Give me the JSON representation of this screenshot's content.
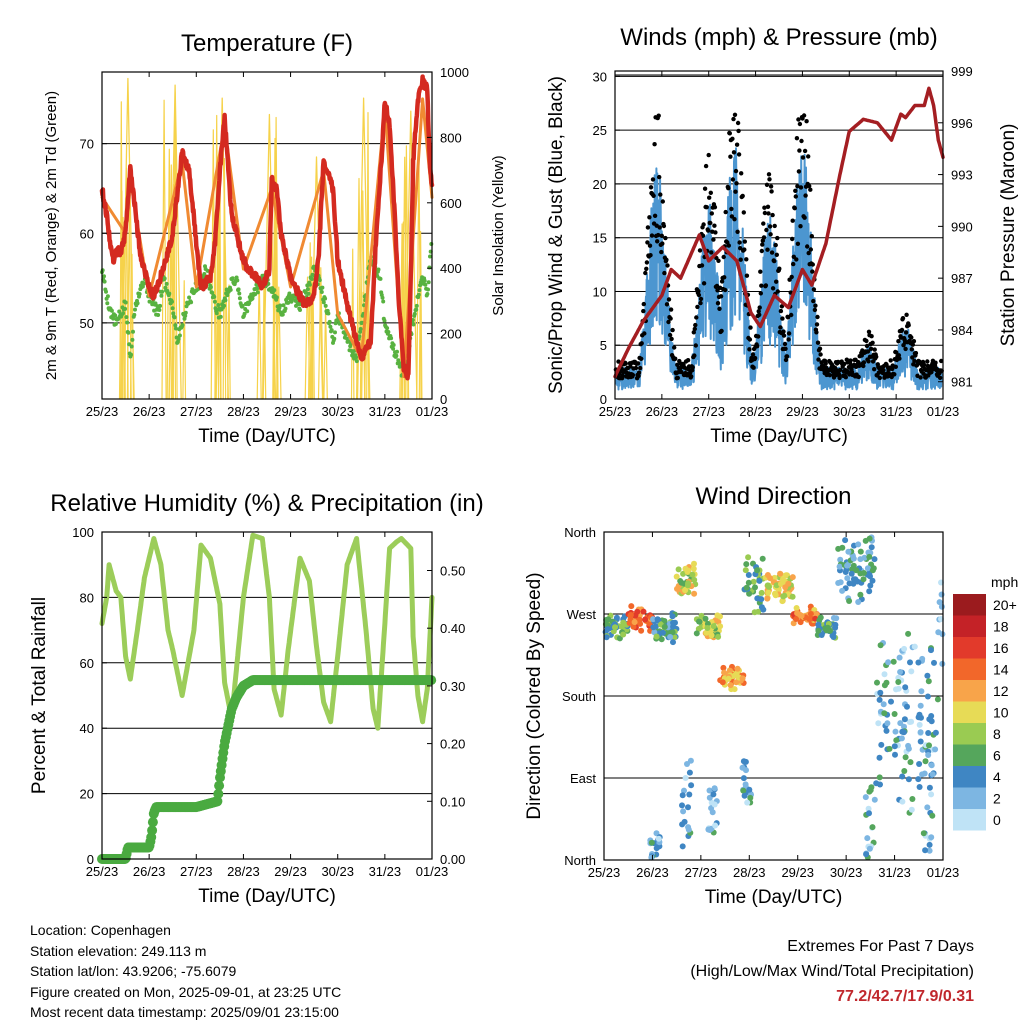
{
  "palette": {
    "temp_red": "#d42a20",
    "temp_orange": "#f08a32",
    "dewpoint_green": "#58b240",
    "solar_yellow": "#f6d24a",
    "wind_black": "#000000",
    "wind_blue": "#4c96d0",
    "pressure_maroon": "#a41e22",
    "rh_light_green": "#9ccd5a",
    "precip_green": "#4aaa40"
  },
  "x_ticks": [
    "25/23",
    "26/23",
    "27/23",
    "28/23",
    "29/23",
    "30/23",
    "31/23",
    "01/23"
  ],
  "x_axis_label": "Time (Day/UTC)",
  "chart_data": [
    {
      "id": "temperature",
      "type": "line",
      "title": "Temperature (F)",
      "ylabel": "2m & 9m T (Red, Orange) & 2m Td (Green)",
      "y2label": "Solar Insolation (Yellow)",
      "ylim": [
        41.5,
        78
      ],
      "yticks": [
        50,
        60,
        70
      ],
      "y2lim": [
        0,
        1000
      ],
      "y2ticks": [
        0,
        200,
        400,
        600,
        800,
        1000
      ],
      "series": [
        {
          "key": "t2m",
          "color": "#d42a20",
          "x": [
            0.0,
            0.1,
            0.2,
            0.25,
            0.3,
            0.4,
            0.5,
            0.55,
            0.6,
            0.65,
            0.7,
            0.8,
            1.0,
            1.1,
            1.3,
            1.5,
            1.7,
            1.85,
            2.0,
            2.1,
            2.3,
            2.4,
            2.5,
            2.6,
            2.75,
            3.0,
            3.1,
            3.3,
            3.4,
            3.55,
            3.6,
            3.7,
            3.8,
            4.0,
            4.3,
            4.5,
            4.6,
            4.7,
            4.9,
            5.0,
            5.2,
            5.5,
            5.7,
            5.8,
            5.95,
            6.0,
            6.1,
            6.2,
            6.3,
            6.4,
            6.5,
            6.55,
            6.6,
            6.7,
            6.8,
            6.9,
            6.95,
            7.0
          ],
          "y": [
            65,
            62,
            58,
            57,
            58,
            58,
            60,
            64,
            67,
            65,
            63,
            58,
            54,
            53,
            56,
            60,
            69,
            67,
            59,
            54,
            55,
            59,
            67,
            73,
            62,
            57,
            56,
            55,
            54,
            56,
            66,
            65,
            60,
            55,
            52,
            53,
            58,
            68,
            65,
            57,
            52,
            46,
            48,
            58,
            70,
            75,
            72,
            63,
            52,
            45,
            44,
            55,
            68,
            75,
            77,
            76,
            68,
            65
          ]
        },
        {
          "key": "t9m",
          "color": "#f08a32",
          "x": [
            0.0,
            0.5,
            0.6,
            1.0,
            1.7,
            2.0,
            2.6,
            3.0,
            3.6,
            4.0,
            4.7,
            5.0,
            5.5,
            6.0,
            6.4,
            6.8,
            7.0
          ],
          "y": [
            64,
            60,
            66,
            53,
            68,
            54,
            72,
            56,
            65,
            54,
            67,
            51,
            46,
            74,
            44,
            75,
            64
          ]
        },
        {
          "key": "td2m",
          "color": "#58b240",
          "x": [
            0.0,
            0.1,
            0.2,
            0.3,
            0.5,
            0.6,
            0.7,
            0.9,
            1.0,
            1.2,
            1.3,
            1.5,
            1.6,
            1.8,
            2.0,
            2.2,
            2.4,
            2.5,
            2.7,
            2.85,
            3.0,
            3.2,
            3.4,
            3.6,
            3.8,
            4.0,
            4.2,
            4.4,
            4.5,
            4.7,
            4.9,
            5.0,
            5.2,
            5.4,
            5.5,
            5.7,
            5.9,
            6.0,
            6.2,
            6.4,
            6.6,
            6.8,
            6.9,
            7.0
          ],
          "y": [
            56,
            53,
            51,
            50,
            52,
            46,
            52,
            55,
            53,
            51,
            55,
            52,
            48,
            52,
            54,
            56,
            52,
            51,
            54,
            55,
            51,
            53,
            55,
            54,
            51,
            53,
            52,
            54,
            56,
            53,
            48,
            51,
            48,
            46,
            50,
            57,
            55,
            50,
            47,
            44,
            50,
            55,
            53,
            60
          ]
        },
        {
          "key": "solar",
          "color": "#f6d24a",
          "axis": "y2",
          "days": [
            0,
            1,
            2,
            3,
            4,
            5,
            6
          ],
          "peaks": [
            980,
            960,
            920,
            870,
            740,
            920,
            880
          ]
        }
      ]
    },
    {
      "id": "winds",
      "type": "scatter",
      "title": "Winds (mph) & Pressure (mb)",
      "ylabel": "Sonic/Prop Wind & Gust (Blue, Black)",
      "y2label": "Station Pressure (Maroon)",
      "ylim": [
        0,
        30.5
      ],
      "yticks": [
        0,
        5,
        10,
        15,
        20,
        25,
        30
      ],
      "y2lim": [
        980,
        999
      ],
      "y2ticks": [
        981,
        984,
        987,
        990,
        993,
        996,
        999
      ],
      "series": [
        {
          "key": "gust",
          "color": "#000000",
          "centers": [
            0.9,
            2.0,
            2.55,
            3.3,
            4.0,
            5.4,
            6.2
          ],
          "peak": [
            26,
            22,
            28,
            20,
            28,
            6,
            8
          ]
        },
        {
          "key": "wind",
          "color": "#4c96d0"
        },
        {
          "key": "pressure",
          "color": "#a41e22",
          "x": [
            0.0,
            0.3,
            0.6,
            1.0,
            1.2,
            1.4,
            1.8,
            2.0,
            2.3,
            2.6,
            2.9,
            3.1,
            3.4,
            3.7,
            4.0,
            4.2,
            4.5,
            4.8,
            5.0,
            5.3,
            5.6,
            5.9,
            6.1,
            6.2,
            6.4,
            6.6,
            6.7,
            6.8,
            6.9,
            7.0
          ],
          "y": [
            981.3,
            983,
            984.5,
            986,
            987.5,
            987,
            989.5,
            988,
            988.8,
            988,
            985,
            984.2,
            986,
            985.3,
            987.5,
            986.6,
            989,
            993,
            995.5,
            996.2,
            996,
            995,
            996.5,
            996.3,
            997,
            997,
            998,
            997,
            995,
            994
          ]
        }
      ]
    },
    {
      "id": "humidity",
      "type": "line",
      "title": "Relative Humidity (%) & Precipitation (in)",
      "ylabel": "Percent & Total Rainfall",
      "ylim": [
        0,
        100
      ],
      "yticks": [
        0,
        20,
        40,
        60,
        80,
        100
      ],
      "y2lim": [
        0,
        0.5667
      ],
      "y2ticks": [
        0.0,
        0.1,
        0.2,
        0.3,
        0.4,
        0.5
      ],
      "y2ticklabels": [
        "0.00",
        "0.10",
        "0.20",
        "0.30",
        "0.40",
        "0.50"
      ],
      "series": [
        {
          "key": "rh",
          "color": "#9ccd5a",
          "x": [
            0.0,
            0.1,
            0.15,
            0.3,
            0.4,
            0.5,
            0.6,
            0.75,
            0.9,
            1.0,
            1.1,
            1.25,
            1.4,
            1.5,
            1.7,
            1.85,
            1.95,
            2.1,
            2.3,
            2.5,
            2.6,
            2.75,
            3.0,
            3.2,
            3.4,
            3.55,
            3.65,
            3.8,
            3.95,
            4.2,
            4.4,
            4.55,
            4.7,
            4.85,
            5.0,
            5.2,
            5.4,
            5.6,
            5.75,
            5.85,
            6.0,
            6.1,
            6.25,
            6.35,
            6.55,
            6.6,
            6.7,
            6.8,
            6.9,
            7.0
          ],
          "y": [
            72,
            80,
            90,
            82,
            80,
            62,
            55,
            70,
            86,
            92,
            98,
            90,
            70,
            64,
            50,
            62,
            70,
            96,
            92,
            78,
            54,
            43,
            80,
            99,
            98,
            80,
            52,
            44,
            64,
            92,
            85,
            65,
            48,
            42,
            62,
            90,
            98,
            70,
            46,
            40,
            72,
            95,
            97,
            98,
            95,
            68,
            50,
            42,
            52,
            80
          ]
        },
        {
          "key": "precip",
          "color": "#4aaa40",
          "axis": "y2",
          "x": [
            0.0,
            0.5,
            0.55,
            1.0,
            1.05,
            1.1,
            1.15,
            1.3,
            2.0,
            2.45,
            2.5,
            2.6,
            2.7,
            2.75,
            2.85,
            3.0,
            3.2,
            7.0
          ],
          "y": [
            0.0,
            0.0,
            0.02,
            0.02,
            0.04,
            0.08,
            0.09,
            0.09,
            0.09,
            0.1,
            0.14,
            0.2,
            0.24,
            0.26,
            0.28,
            0.3,
            0.31,
            0.31
          ]
        }
      ]
    },
    {
      "id": "direction",
      "type": "scatter",
      "title": "Wind Direction",
      "ylabel": "Direction (Colored By Speed)",
      "ylim": [
        0,
        360
      ],
      "yticks": [
        0,
        90,
        180,
        270,
        360
      ],
      "yticklabels": [
        "North",
        "East",
        "South",
        "West",
        "North"
      ],
      "legend": {
        "title": "mph",
        "labels": [
          "20+",
          "18",
          "16",
          "14",
          "12",
          "10",
          "8",
          "6",
          "4",
          "2",
          "0"
        ],
        "colors": [
          "#9b1b1e",
          "#c42227",
          "#e23a2b",
          "#f2672a",
          "#f8a44a",
          "#e7db56",
          "#9acb52",
          "#55a65c",
          "#3f86c3",
          "#7db6e2",
          "#bfe3f6"
        ]
      }
    }
  ],
  "info": {
    "location": "Location: Copenhagen",
    "elevation": "Station elevation: 249.113 m",
    "latlon": "Station lat/lon: 43.9206; -75.6079",
    "created": "Figure created on Mon, 2025-09-01, at 23:25 UTC",
    "timestamp": "Most recent data timestamp: 2025/09/01 23:15:00"
  },
  "extremes": {
    "title": "Extremes For Past 7 Days",
    "subtitle": "(High/Low/Max Wind/Total Precipitation)",
    "values": "77.2/42.7/17.9/0.31"
  }
}
